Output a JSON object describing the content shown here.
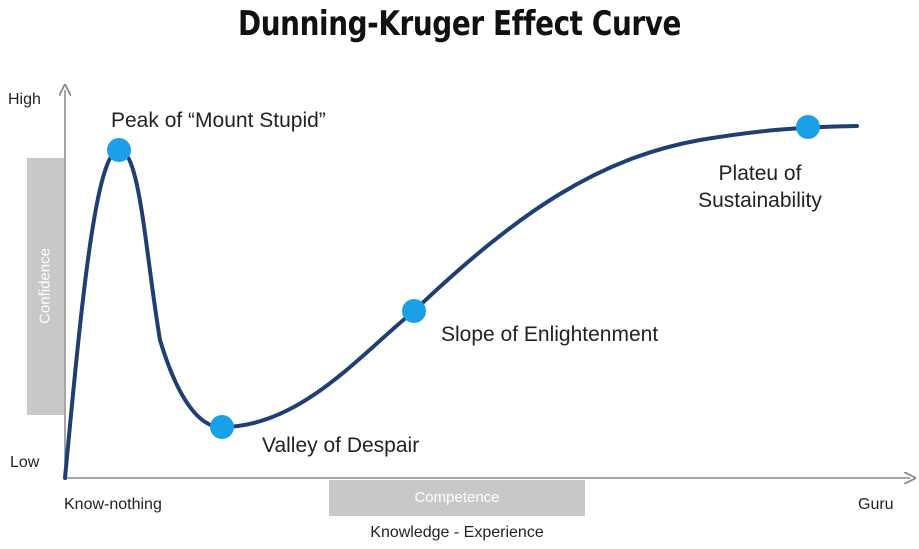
{
  "title": "Dunning-Kruger Effect Curve",
  "y_axis": {
    "high_label": "High",
    "low_label": "Low",
    "bar_label": "Confidence"
  },
  "x_axis": {
    "start_label": "Know-nothing",
    "end_label": "Guru",
    "bar_label": "Competence",
    "title": "Knowledge - Experience"
  },
  "stages": {
    "peak": "Peak of “Mount Stupid”",
    "valley": "Valley of Despair",
    "slope": "Slope of Enlightenment",
    "plateau_line1": "Plateu of",
    "plateau_line2": "Sustainability"
  },
  "colors": {
    "curve": "#1e3f72",
    "marker": "#1aa0e6",
    "axis": "#888888",
    "bar": "#c8c8c8"
  }
}
